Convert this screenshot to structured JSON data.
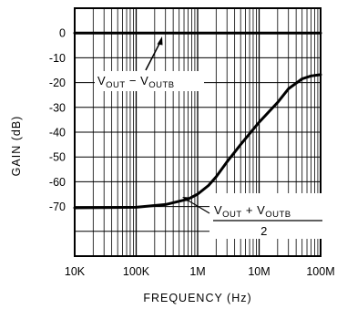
{
  "chart_data": {
    "type": "line",
    "xscale": "log",
    "xlim": [
      10000,
      100000000
    ],
    "ylim": [
      -90,
      10
    ],
    "xlabel": "FREQUENCY (Hz)",
    "ylabel": "GAIN (dB)",
    "x_tick_values": [
      10000,
      100000,
      1000000,
      10000000,
      100000000
    ],
    "x_tick_labels": [
      "10K",
      "100K",
      "1M",
      "10M",
      "100M"
    ],
    "y_tick_values": [
      0,
      -10,
      -20,
      -30,
      -40,
      -50,
      -60,
      -70
    ],
    "y_tick_labels": [
      "0",
      "-10",
      "-20",
      "-30",
      "-40",
      "-50",
      "-60",
      "-70"
    ],
    "grid": true,
    "series": [
      {
        "x": [
          10000,
          100000,
          1000000,
          100000000
        ],
        "y": [
          0,
          0,
          0,
          0
        ]
      },
      {
        "x": [
          10000,
          100000,
          300000,
          700000,
          1000000,
          1500000,
          2000000,
          3000000,
          5000000,
          10000000,
          20000000,
          30000000,
          50000000,
          70000000,
          100000000
        ],
        "y": [
          -70.5,
          -70.3,
          -69.2,
          -67,
          -65,
          -61.5,
          -58,
          -52,
          -45,
          -36,
          -28,
          -22.5,
          -18.5,
          -17.3,
          -16.8
        ]
      }
    ],
    "annotations": [
      {
        "main1": "V",
        "sub1": "OUT",
        "op": " − ",
        "main2": "V",
        "sub2": "OUTB"
      },
      {
        "main1": "V",
        "sub1": "OUT",
        "op": " + ",
        "main2": "V",
        "sub2": "OUTB",
        "denominator": "2"
      }
    ]
  }
}
